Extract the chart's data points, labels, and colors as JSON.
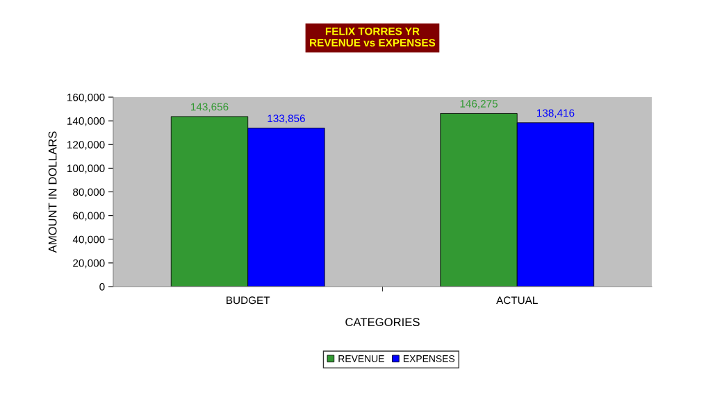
{
  "chart_data": {
    "type": "bar",
    "title": "FELIX TORRES YR\nREVENUE vs EXPENSES",
    "xlabel": "CATEGORIES",
    "ylabel": "AMOUNT IN DOLLARS",
    "categories": [
      "BUDGET",
      "ACTUAL"
    ],
    "series": [
      {
        "name": "REVENUE",
        "color": "#339933",
        "values": [
          143656,
          146275
        ],
        "value_labels": [
          "143,656",
          "146,275"
        ]
      },
      {
        "name": "EXPENSES",
        "color": "#0000ff",
        "values": [
          133856,
          138416
        ],
        "value_labels": [
          "133,856",
          "138,416"
        ]
      }
    ],
    "ylim": [
      0,
      160000
    ],
    "yticks": [
      {
        "value": 0,
        "label": "0"
      },
      {
        "value": 20000,
        "label": "20,000"
      },
      {
        "value": 40000,
        "label": "40,000"
      },
      {
        "value": 60000,
        "label": "60,000"
      },
      {
        "value": 80000,
        "label": "80,000"
      },
      {
        "value": 100000,
        "label": "100,000"
      },
      {
        "value": 120000,
        "label": "120,000"
      },
      {
        "value": 140000,
        "label": "140,000"
      },
      {
        "value": 160000,
        "label": "160,000"
      }
    ],
    "grid": false,
    "legend": "bottom"
  }
}
